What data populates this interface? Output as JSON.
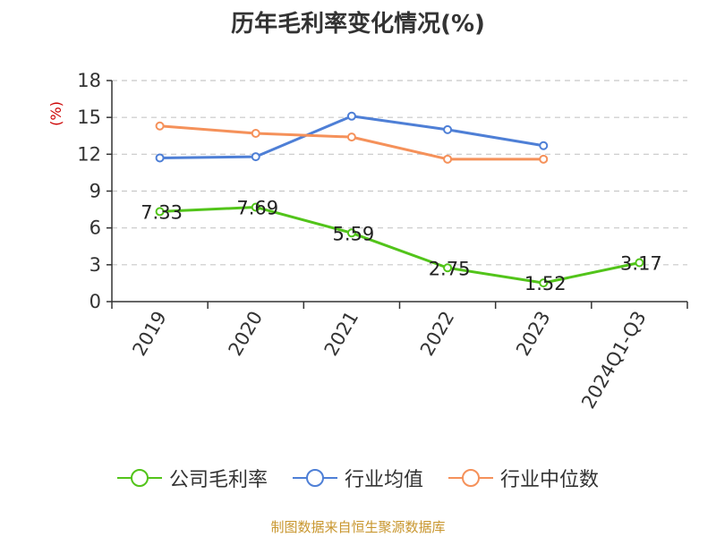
{
  "chart_data": {
    "type": "line",
    "title": "历年毛利率变化情况(%)",
    "ylabel": "(%)",
    "ylim": [
      0,
      18
    ],
    "yticks": [
      0,
      3,
      6,
      9,
      12,
      15,
      18
    ],
    "grid": true,
    "legend_position": "bottom",
    "categories": [
      "2019",
      "2020",
      "2021",
      "2022",
      "2023",
      "2024Q1-Q3"
    ],
    "series": [
      {
        "name": "公司毛利率",
        "color": "#52c41a",
        "values": [
          7.33,
          7.69,
          5.59,
          2.75,
          1.52,
          3.17
        ],
        "labels": [
          "7.33",
          "7.69",
          "5.59",
          "2.75",
          "1.52",
          "3.17"
        ]
      },
      {
        "name": "行业均值",
        "color": "#4e7fd6",
        "values": [
          11.7,
          11.8,
          15.1,
          14.0,
          12.7,
          null
        ]
      },
      {
        "name": "行业中位数",
        "color": "#f5915a",
        "values": [
          14.3,
          13.7,
          13.4,
          11.6,
          11.6,
          null
        ]
      }
    ]
  },
  "source": "制图数据来自恒生聚源数据库"
}
